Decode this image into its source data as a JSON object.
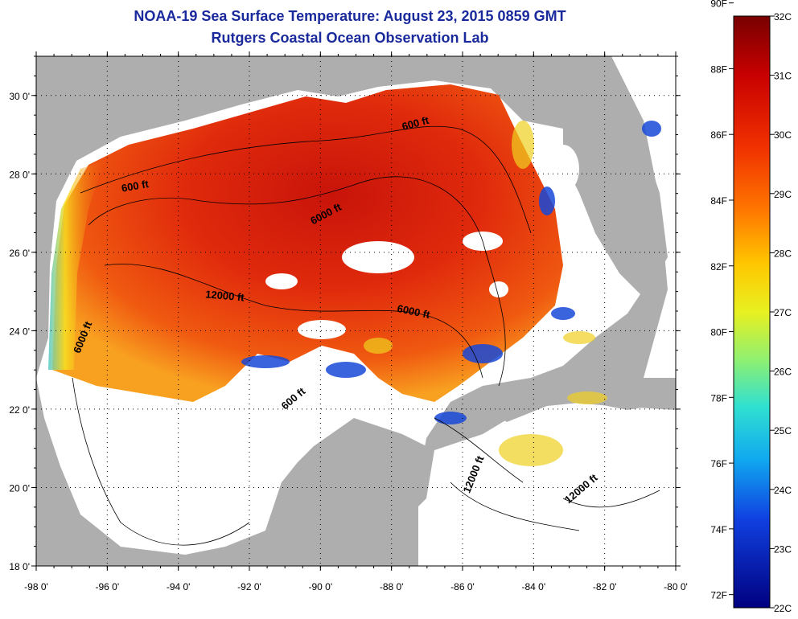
{
  "title": "NOAA-19 Sea Surface Temperature:  August 23, 2015 0859 GMT",
  "subtitle": "Rutgers Coastal Ocean Observation Lab",
  "colors": {
    "title": "#1a2a9c",
    "land": "#aeaeae",
    "no_data": "#ffffff",
    "sst_hot": "#e0240c",
    "sst_warm": "#f06010"
  },
  "map": {
    "lon_range": [
      -98,
      -80
    ],
    "lat_range": [
      18,
      31
    ],
    "lon_ticks": [
      {
        "value": -98,
        "label": "-98 0'"
      },
      {
        "value": -96,
        "label": "-96 0'"
      },
      {
        "value": -94,
        "label": "-94 0'"
      },
      {
        "value": -92,
        "label": "-92 0'"
      },
      {
        "value": -90,
        "label": "-90 0'"
      },
      {
        "value": -88,
        "label": "-88 0'"
      },
      {
        "value": -86,
        "label": "-86 0'"
      },
      {
        "value": -84,
        "label": "-84 0'"
      },
      {
        "value": -82,
        "label": "-82 0'"
      },
      {
        "value": -80,
        "label": "-80 0'"
      }
    ],
    "lat_ticks": [
      {
        "value": 18,
        "label": "18 0'"
      },
      {
        "value": 20,
        "label": "20 0'"
      },
      {
        "value": 22,
        "label": "22 0'"
      },
      {
        "value": 24,
        "label": "24 0'"
      },
      {
        "value": 26,
        "label": "26 0'"
      },
      {
        "value": 28,
        "label": "28 0'"
      },
      {
        "value": 30,
        "label": "30 0'"
      }
    ],
    "contour_labels": [
      {
        "text": "600 ft",
        "lon": -87.3,
        "lat": 29.2,
        "rotate": -15
      },
      {
        "text": "600 ft",
        "lon": -95.2,
        "lat": 27.6,
        "rotate": -10
      },
      {
        "text": "6000 ft",
        "lon": -89.8,
        "lat": 26.9,
        "rotate": -28
      },
      {
        "text": "12000 ft",
        "lon": -92.7,
        "lat": 24.8,
        "rotate": 5
      },
      {
        "text": "6000 ft",
        "lon": -87.4,
        "lat": 24.4,
        "rotate": 12
      },
      {
        "text": "6000 ft",
        "lon": -96.6,
        "lat": 23.8,
        "rotate": -68
      },
      {
        "text": "600 ft",
        "lon": -90.7,
        "lat": 22.2,
        "rotate": -40
      },
      {
        "text": "12000 ft",
        "lon": -85.6,
        "lat": 20.3,
        "rotate": -68
      },
      {
        "text": "12000 ft",
        "lon": -82.6,
        "lat": 19.9,
        "rotate": -40
      }
    ]
  },
  "colorbar": {
    "min_c": 22,
    "max_c": 32,
    "f_labels": [
      "90F",
      "88F",
      "86F",
      "84F",
      "82F",
      "80F",
      "78F",
      "76F",
      "74F",
      "72F"
    ],
    "f_values": [
      90,
      88,
      86,
      84,
      82,
      80,
      78,
      76,
      74,
      72
    ],
    "c_labels": [
      "32C",
      "31C",
      "30C",
      "29C",
      "28C",
      "27C",
      "26C",
      "25C",
      "24C",
      "23C",
      "22C"
    ],
    "c_values": [
      32,
      31,
      30,
      29,
      28,
      27,
      26,
      25,
      24,
      23,
      22
    ]
  }
}
